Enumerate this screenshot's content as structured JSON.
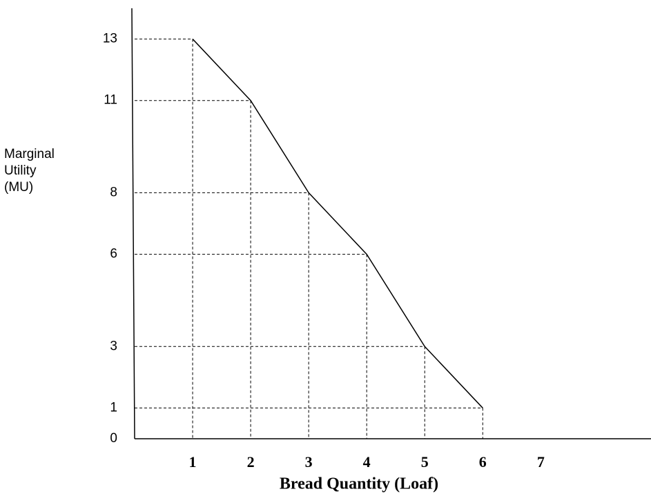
{
  "chart_data": {
    "type": "line",
    "x_label": "Bread Quantity (Loaf)",
    "y_label": "Marginal Utility (MU)",
    "x": [
      1,
      2,
      3,
      4,
      5,
      6
    ],
    "series": [
      {
        "color": "#000000",
        "values": [
          13,
          11,
          8,
          6,
          3,
          1
        ]
      }
    ],
    "xlim": [
      0,
      8.9
    ],
    "xticks": [
      1,
      2,
      3,
      4,
      5,
      6,
      7
    ],
    "ylim": [
      0,
      14
    ],
    "yticks": [
      0,
      1,
      3,
      6,
      8,
      11,
      13
    ],
    "guides": true
  }
}
